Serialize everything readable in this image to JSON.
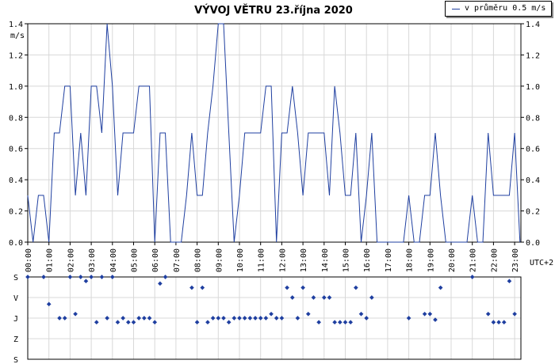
{
  "chart_data": [
    {
      "type": "line",
      "title": "VÝVOJ VĚTRU  23.října 2020",
      "ylabel": "m/s",
      "xlabel": "UTC+2",
      "ylim": [
        0,
        1.4
      ],
      "yticks": [
        "0.0",
        "0.2",
        "0.4",
        "0.6",
        "0.8",
        "1.0",
        "1.2",
        "1.4"
      ],
      "xticks": [
        "00:00",
        "01:00",
        "02:00",
        "03:00",
        "04:00",
        "05:00",
        "06:00",
        "07:00",
        "08:00",
        "09:00",
        "10:00",
        "11:00",
        "12:00",
        "13:00",
        "14:00",
        "15:00",
        "16:00",
        "17:00",
        "18:00",
        "19:00",
        "20:00",
        "21:00",
        "22:00",
        "23:00"
      ],
      "grid": true,
      "legend_position": "top-right",
      "series": [
        {
          "name": "v průměru 0.5 m/s",
          "color": "#1f3fa0",
          "x": [
            0,
            0.25,
            0.5,
            0.75,
            1,
            1.25,
            1.5,
            1.75,
            2,
            2.25,
            2.5,
            2.75,
            3,
            3.25,
            3.5,
            3.75,
            4,
            4.25,
            4.5,
            4.75,
            5,
            5.25,
            5.5,
            5.75,
            6,
            6.25,
            6.5,
            6.75,
            7,
            7.25,
            7.5,
            7.75,
            8,
            8.25,
            8.5,
            8.75,
            9,
            9.25,
            9.5,
            9.75,
            10,
            10.25,
            10.5,
            10.75,
            11,
            11.25,
            11.5,
            11.75,
            12,
            12.25,
            12.5,
            12.75,
            13,
            13.25,
            13.5,
            13.75,
            14,
            14.25,
            14.5,
            14.75,
            15,
            15.25,
            15.5,
            15.75,
            16,
            16.25,
            16.5,
            16.75,
            17,
            17.25,
            17.5,
            17.75,
            18,
            18.25,
            18.5,
            18.75,
            19,
            19.25,
            19.5,
            19.75,
            20,
            20.25,
            20.5,
            20.75,
            21,
            21.25,
            21.5,
            21.75,
            22,
            22.25,
            22.5,
            22.75,
            23,
            23.25
          ],
          "y": [
            0.3,
            0,
            0.3,
            0.3,
            0,
            0.7,
            0.7,
            1.0,
            1.0,
            0.3,
            0.7,
            0.3,
            1.0,
            1.0,
            0.7,
            1.4,
            1.0,
            0.3,
            0.7,
            0.7,
            0.7,
            1.0,
            1.0,
            1.0,
            0,
            0.7,
            0.7,
            0,
            0,
            0,
            0.3,
            0.7,
            0.3,
            0.3,
            0.7,
            1.0,
            1.4,
            1.4,
            0.7,
            0,
            0.3,
            0.7,
            0.7,
            0.7,
            0.7,
            1.0,
            1.0,
            0,
            0.7,
            0.7,
            1.0,
            0.7,
            0.3,
            0.7,
            0.7,
            0.7,
            0.7,
            0.3,
            1.0,
            0.7,
            0.3,
            0.3,
            0.7,
            0,
            0.3,
            0.7,
            0,
            0,
            0,
            0,
            0,
            0,
            0.3,
            0,
            0,
            0.3,
            0.3,
            0.7,
            0.3,
            0,
            0,
            0,
            0,
            0,
            0.3,
            0,
            0,
            0.7,
            0.3,
            0.3,
            0.3,
            0.3,
            0.7,
            0
          ]
        }
      ]
    },
    {
      "type": "scatter",
      "title": "",
      "ylabel": "",
      "xlabel": "",
      "y_categories": [
        "S",
        "V",
        "J",
        "Z",
        "S"
      ],
      "grid": true,
      "series": [
        {
          "name": "",
          "color": "#1f3fa0",
          "x": [
            0,
            0.75,
            1,
            1.5,
            1.75,
            2,
            2.25,
            2.5,
            2.75,
            3,
            3.25,
            3.5,
            3.75,
            4,
            4.25,
            4.5,
            4.75,
            5,
            5.25,
            5.5,
            5.75,
            6,
            6.25,
            6.5,
            7.75,
            8,
            8.25,
            8.5,
            8.75,
            9,
            9.25,
            9.5,
            9.75,
            10,
            10.25,
            10.5,
            10.75,
            11,
            11.25,
            11.5,
            11.75,
            12,
            12.25,
            12.5,
            12.75,
            13,
            13.25,
            13.5,
            13.75,
            14,
            14.25,
            14.5,
            14.75,
            15,
            15.25,
            15.5,
            15.75,
            16,
            16.25,
            18,
            18.75,
            19,
            19.25,
            19.5,
            21,
            21.75,
            22,
            22.25,
            22.5,
            22.75,
            23
          ],
          "y": [
            0,
            0,
            0.33,
            0.5,
            0.5,
            0,
            0.45,
            0,
            0.05,
            0,
            0.55,
            0,
            0.5,
            0,
            0.55,
            0.5,
            0.55,
            0.55,
            0.5,
            0.5,
            0.5,
            0.55,
            0.08,
            0,
            0.13,
            0.55,
            0.13,
            0.55,
            0.5,
            0.5,
            0.5,
            0.55,
            0.5,
            0.5,
            0.5,
            0.5,
            0.5,
            0.5,
            0.5,
            0.45,
            0.5,
            0.5,
            0.13,
            0.25,
            0.5,
            0.13,
            0.45,
            0.25,
            0.55,
            0.25,
            0.25,
            0.55,
            0.55,
            0.55,
            0.55,
            0.13,
            0.45,
            0.5,
            0.25,
            0.5,
            0.45,
            0.45,
            0.52,
            0.13,
            0,
            0.45,
            0.55,
            0.55,
            0.55,
            0.05,
            0.45
          ]
        }
      ]
    }
  ]
}
